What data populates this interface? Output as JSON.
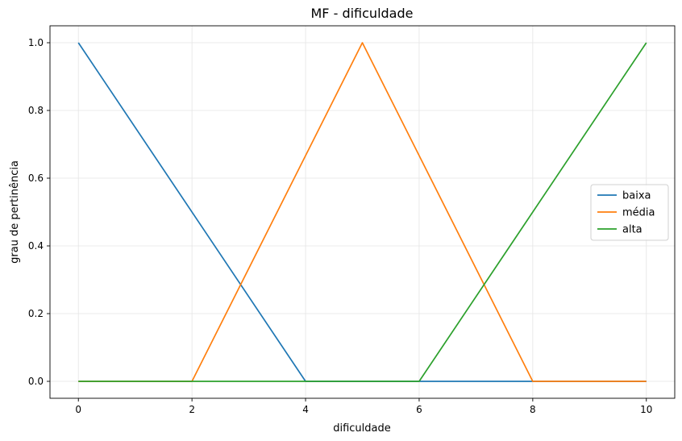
{
  "chart_data": {
    "type": "line",
    "title": "MF - dificuldade",
    "xlabel": "dificuldade",
    "ylabel": "grau de pertinência",
    "xlim": [
      -0.5,
      10.5
    ],
    "ylim": [
      -0.05,
      1.05
    ],
    "xticks": [
      0,
      2,
      4,
      6,
      8,
      10
    ],
    "xtick_labels": [
      "0",
      "2",
      "4",
      "6",
      "8",
      "10"
    ],
    "yticks": [
      0.0,
      0.2,
      0.4,
      0.6,
      0.8,
      1.0
    ],
    "ytick_labels": [
      "0.0",
      "0.2",
      "0.4",
      "0.6",
      "0.8",
      "1.0"
    ],
    "grid": true,
    "legend_position": "center-right",
    "series": [
      {
        "name": "baixa",
        "color": "#1f77b4",
        "x": [
          0,
          4,
          10
        ],
        "y": [
          1,
          0,
          0
        ]
      },
      {
        "name": "média",
        "color": "#ff7f0e",
        "x": [
          0,
          2,
          5,
          8,
          10
        ],
        "y": [
          0,
          0,
          1,
          0,
          0
        ]
      },
      {
        "name": "alta",
        "color": "#2ca02c",
        "x": [
          0,
          6,
          10
        ],
        "y": [
          0,
          0,
          1
        ]
      }
    ]
  }
}
